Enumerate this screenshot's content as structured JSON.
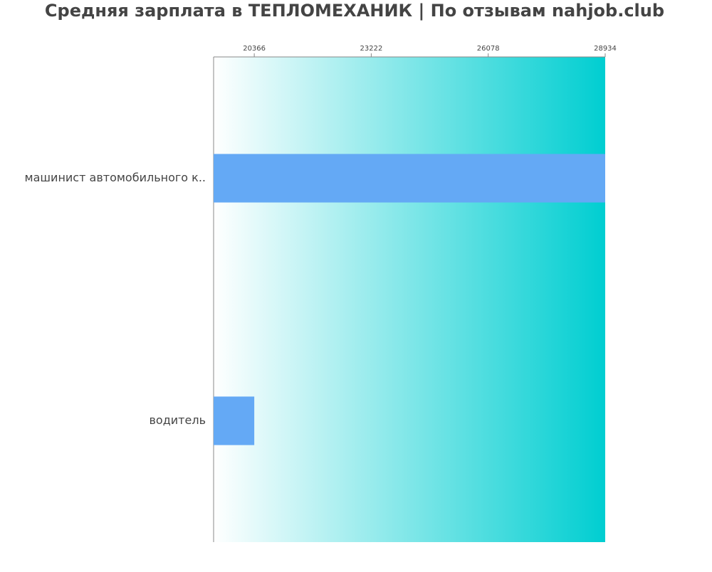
{
  "chart_data": {
    "type": "bar",
    "orientation": "horizontal",
    "title": "Средняя зарплата в ТЕПЛОМЕХАНИК | По отзывам nahjob.club",
    "categories": [
      "машинист автомобильного к..",
      "водитель"
    ],
    "values": [
      28934,
      20366
    ],
    "color": "#64a9f5",
    "xlim": [
      19373,
      28934
    ],
    "xticks": [
      20366,
      23222,
      26078,
      28934
    ],
    "background_gradient": [
      "#ffffff",
      "#00ced1"
    ]
  }
}
